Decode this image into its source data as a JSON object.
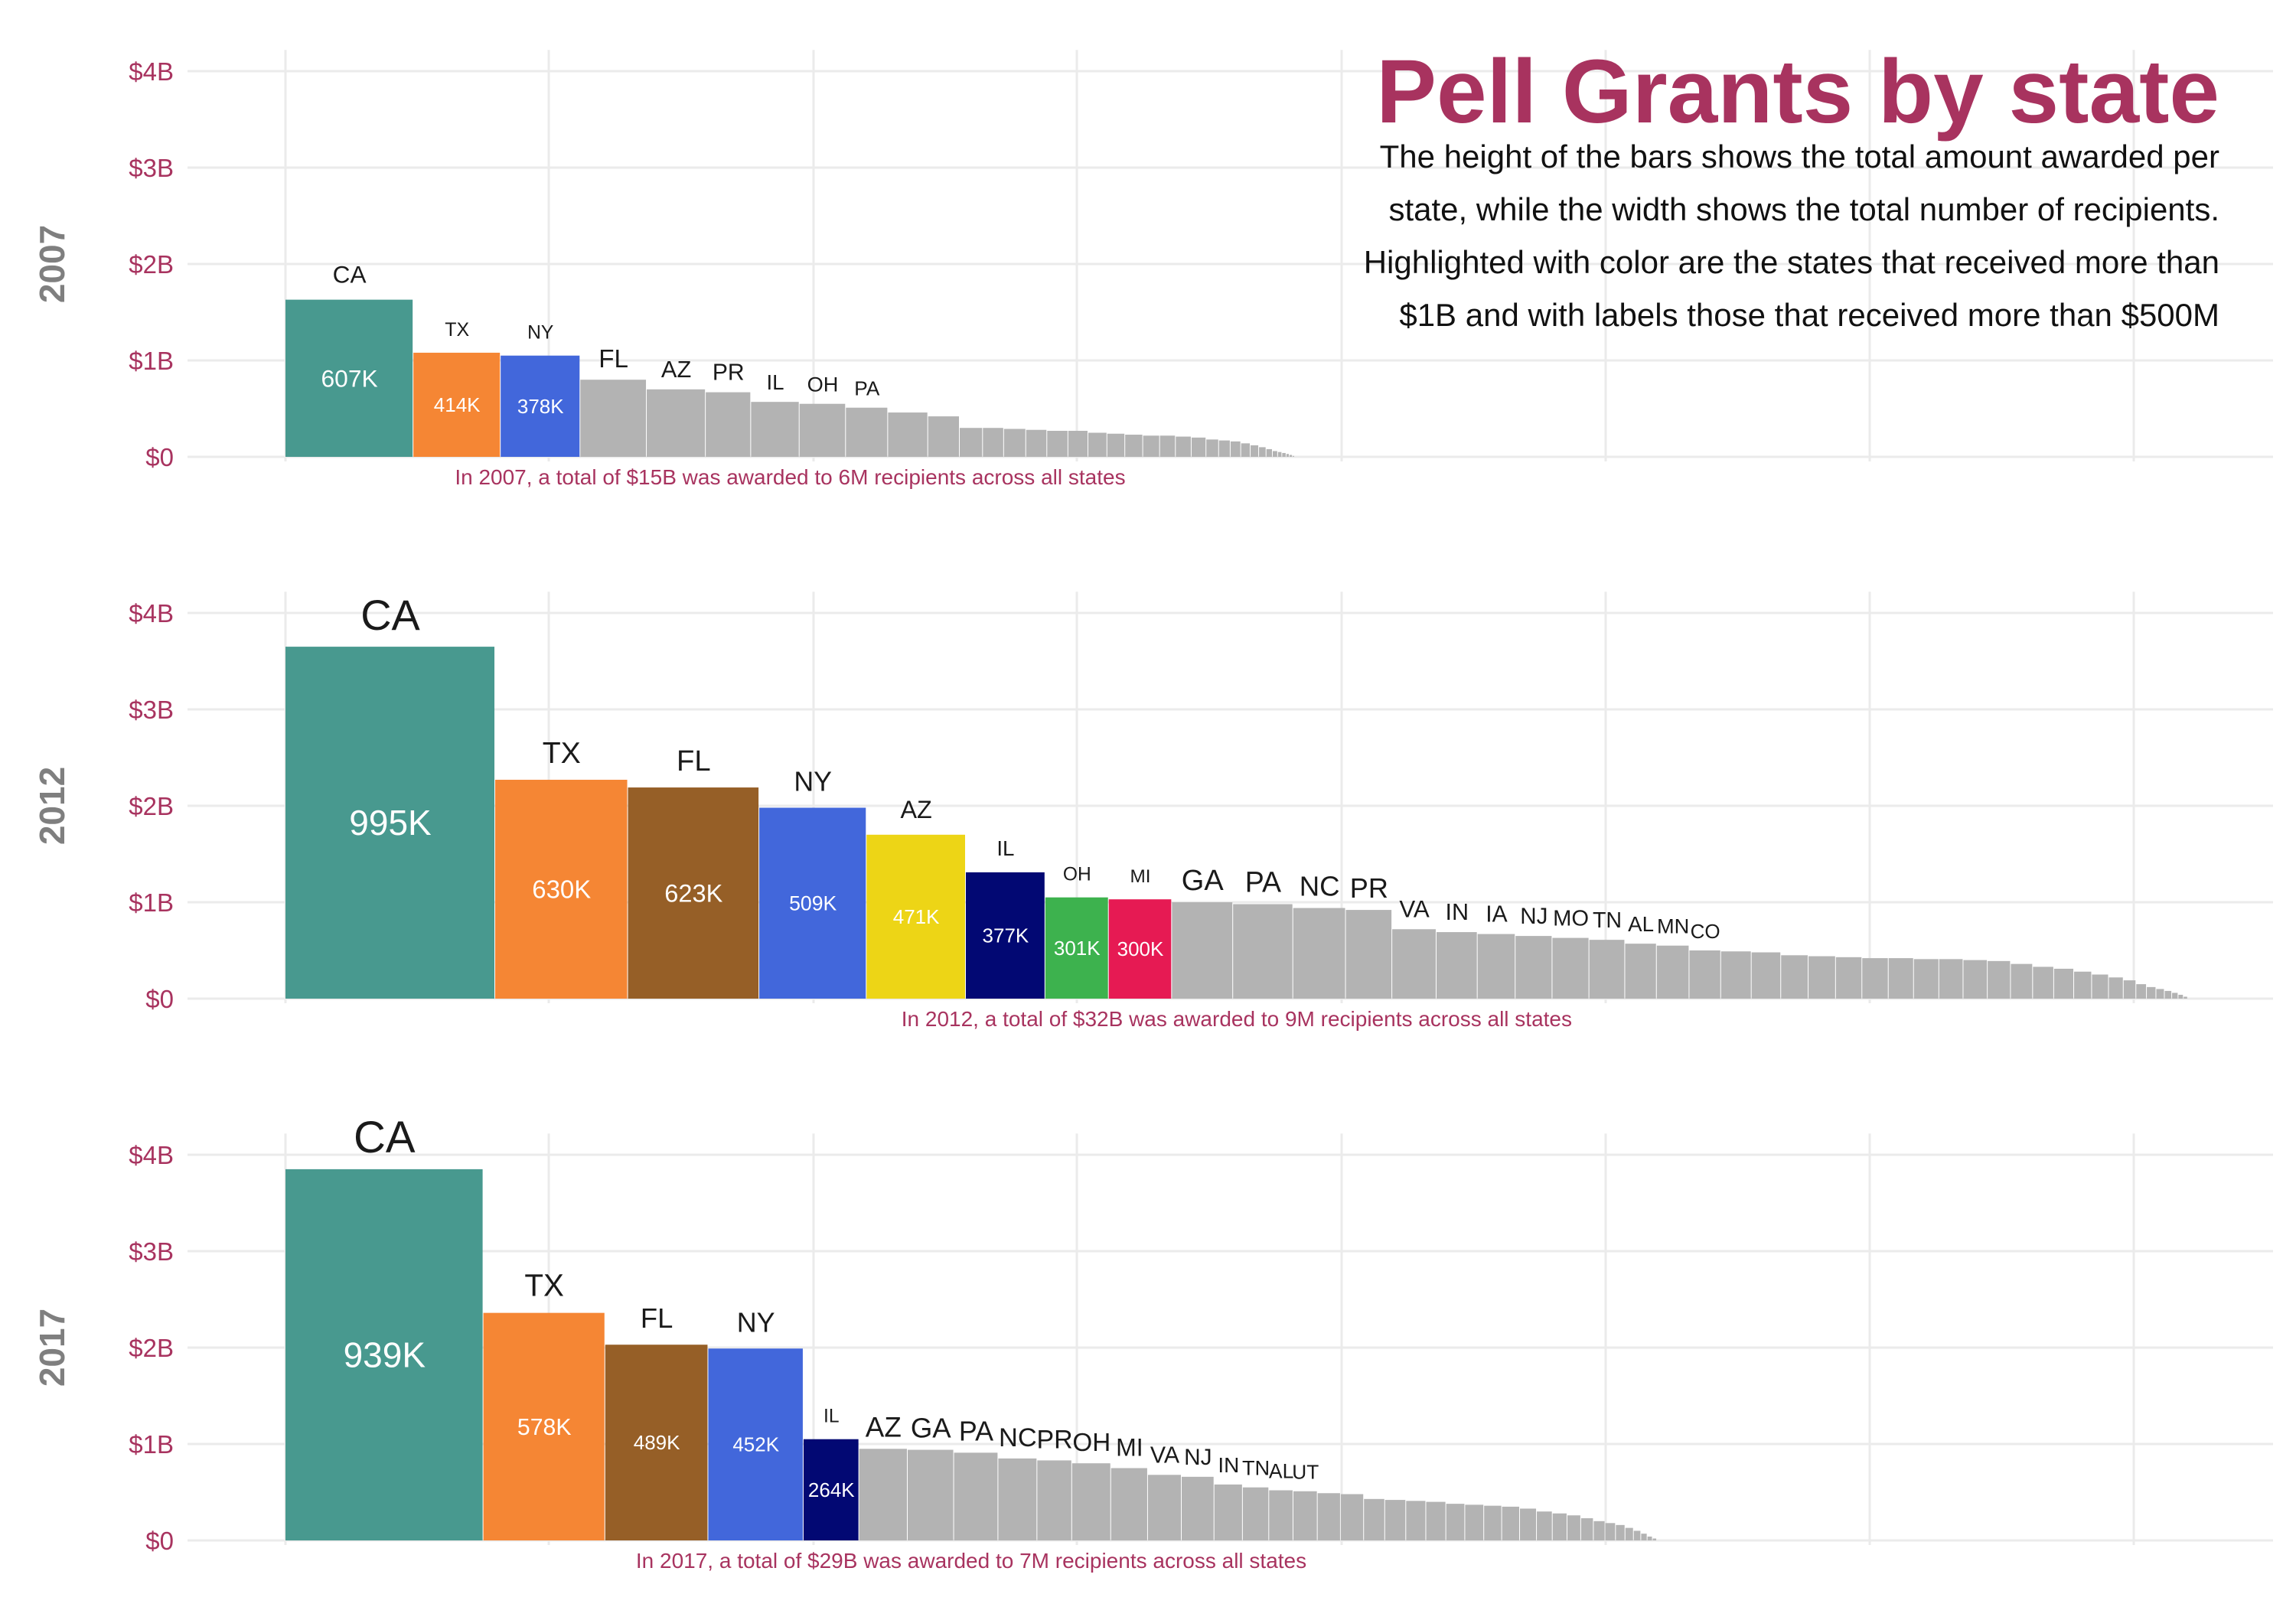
{
  "header": {
    "title": "Pell Grants by state",
    "subtitle": "The height of the bars shows the total amount awarded per state, while the width shows the total number of recipients. Highlighted with color are the states that received more than $1B and with labels those that received more than $500M"
  },
  "colors": {
    "title": "#A8335F",
    "tick_label": "#A8335F",
    "facet_label": "#7f7f7f",
    "grid": "#ebebeb",
    "other_bars": "#b3b3b3",
    "CA": "#48998F",
    "TX": "#F58634",
    "FL": "#965F27",
    "NY": "#4267DB",
    "AZ": "#EDD516",
    "IL": "#020873",
    "OH": "#3DB24E",
    "MI": "#E61A53"
  },
  "chart_data": [
    {
      "type": "bar",
      "subtype": "variable-width bar (Marimekko style): height = total awarded, width = number of recipients",
      "panel": "2007",
      "y_tick_labels": [
        "$0",
        "$1B",
        "$2B",
        "$3B",
        "$4B"
      ],
      "ylim": [
        0,
        4.0
      ],
      "y_unit": "billion USD",
      "x_unit": "thousand recipients",
      "grid": true,
      "caption": "In 2007, a total of $15B was awarded to 6M recipients across all states",
      "highlighted": [
        {
          "state": "CA",
          "value": 1.63,
          "recipients": 607,
          "recipients_label": "607K",
          "color": "#48998F"
        },
        {
          "state": "TX",
          "value": 1.08,
          "recipients": 414,
          "recipients_label": "414K",
          "color": "#F58634"
        },
        {
          "state": "NY",
          "value": 1.05,
          "recipients": 378,
          "recipients_label": "378K",
          "color": "#4267DB"
        }
      ],
      "others": [
        {
          "state": "FL",
          "value": 0.8,
          "recipients": 315
        },
        {
          "state": "AZ",
          "value": 0.7,
          "recipients": 280
        },
        {
          "state": "PR",
          "value": 0.67,
          "recipients": 215
        },
        {
          "state": "IL",
          "value": 0.57,
          "recipients": 230
        },
        {
          "state": "OH",
          "value": 0.55,
          "recipients": 220
        },
        {
          "state": "PA",
          "value": 0.51,
          "recipients": 200
        },
        {
          "state": "",
          "value": 0.46,
          "recipients": 190
        },
        {
          "state": "",
          "value": 0.42,
          "recipients": 150
        },
        {
          "state": "",
          "value": 0.3,
          "recipients": 110
        },
        {
          "state": "",
          "value": 0.3,
          "recipients": 100
        },
        {
          "state": "",
          "value": 0.29,
          "recipients": 105
        },
        {
          "state": "",
          "value": 0.28,
          "recipients": 100
        },
        {
          "state": "",
          "value": 0.27,
          "recipients": 100
        },
        {
          "state": "",
          "value": 0.27,
          "recipients": 95
        },
        {
          "state": "",
          "value": 0.25,
          "recipients": 90
        },
        {
          "state": "",
          "value": 0.24,
          "recipients": 85
        },
        {
          "state": "",
          "value": 0.23,
          "recipients": 85
        },
        {
          "state": "",
          "value": 0.22,
          "recipients": 80
        },
        {
          "state": "",
          "value": 0.22,
          "recipients": 75
        },
        {
          "state": "",
          "value": 0.21,
          "recipients": 75
        },
        {
          "state": "",
          "value": 0.2,
          "recipients": 70
        },
        {
          "state": "",
          "value": 0.18,
          "recipients": 60
        },
        {
          "state": "",
          "value": 0.17,
          "recipients": 55
        },
        {
          "state": "",
          "value": 0.16,
          "recipients": 50
        },
        {
          "state": "",
          "value": 0.14,
          "recipients": 45
        },
        {
          "state": "",
          "value": 0.12,
          "recipients": 40
        },
        {
          "state": "",
          "value": 0.1,
          "recipients": 35
        },
        {
          "state": "",
          "value": 0.08,
          "recipients": 30
        },
        {
          "state": "",
          "value": 0.06,
          "recipients": 25
        },
        {
          "state": "",
          "value": 0.05,
          "recipients": 20
        },
        {
          "state": "",
          "value": 0.04,
          "recipients": 20
        },
        {
          "state": "",
          "value": 0.03,
          "recipients": 15
        },
        {
          "state": "",
          "value": 0.02,
          "recipients": 15
        },
        {
          "state": "",
          "value": 0.01,
          "recipients": 10
        }
      ]
    },
    {
      "type": "bar",
      "subtype": "variable-width bar (Marimekko style): height = total awarded, width = number of recipients",
      "panel": "2012",
      "y_tick_labels": [
        "$0",
        "$1B",
        "$2B",
        "$3B",
        "$4B"
      ],
      "ylim": [
        0,
        4.0
      ],
      "y_unit": "billion USD",
      "x_unit": "thousand recipients",
      "grid": true,
      "caption": "In 2012, a total of $32B was awarded to 9M recipients across all states",
      "highlighted": [
        {
          "state": "CA",
          "value": 3.65,
          "recipients": 995,
          "recipients_label": "995K",
          "color": "#48998F"
        },
        {
          "state": "TX",
          "value": 2.27,
          "recipients": 630,
          "recipients_label": "630K",
          "color": "#F58634"
        },
        {
          "state": "FL",
          "value": 2.19,
          "recipients": 623,
          "recipients_label": "623K",
          "color": "#965F27"
        },
        {
          "state": "NY",
          "value": 1.98,
          "recipients": 509,
          "recipients_label": "509K",
          "color": "#4267DB"
        },
        {
          "state": "AZ",
          "value": 1.7,
          "recipients": 471,
          "recipients_label": "471K",
          "color": "#EDD516"
        },
        {
          "state": "IL",
          "value": 1.31,
          "recipients": 377,
          "recipients_label": "377K",
          "color": "#020873"
        },
        {
          "state": "OH",
          "value": 1.05,
          "recipients": 301,
          "recipients_label": "301K",
          "color": "#3DB24E"
        },
        {
          "state": "MI",
          "value": 1.03,
          "recipients": 300,
          "recipients_label": "300K",
          "color": "#E61A53"
        }
      ],
      "others": [
        {
          "state": "GA",
          "value": 1.0,
          "recipients": 290
        },
        {
          "state": "PA",
          "value": 0.98,
          "recipients": 285
        },
        {
          "state": "NC",
          "value": 0.94,
          "recipients": 250
        },
        {
          "state": "PR",
          "value": 0.92,
          "recipients": 220
        },
        {
          "state": "VA",
          "value": 0.72,
          "recipients": 210
        },
        {
          "state": "IN",
          "value": 0.69,
          "recipients": 195
        },
        {
          "state": "IA",
          "value": 0.67,
          "recipients": 180
        },
        {
          "state": "NJ",
          "value": 0.65,
          "recipients": 175
        },
        {
          "state": "MO",
          "value": 0.63,
          "recipients": 175
        },
        {
          "state": "TN",
          "value": 0.61,
          "recipients": 170
        },
        {
          "state": "AL",
          "value": 0.57,
          "recipients": 150
        },
        {
          "state": "MN",
          "value": 0.55,
          "recipients": 155
        },
        {
          "state": "CO",
          "value": 0.5,
          "recipients": 150
        },
        {
          "state": "",
          "value": 0.49,
          "recipients": 145
        },
        {
          "state": "",
          "value": 0.48,
          "recipients": 140
        },
        {
          "state": "",
          "value": 0.45,
          "recipients": 130
        },
        {
          "state": "",
          "value": 0.44,
          "recipients": 130
        },
        {
          "state": "",
          "value": 0.43,
          "recipients": 125
        },
        {
          "state": "",
          "value": 0.42,
          "recipients": 125
        },
        {
          "state": "",
          "value": 0.42,
          "recipients": 120
        },
        {
          "state": "",
          "value": 0.41,
          "recipients": 120
        },
        {
          "state": "",
          "value": 0.41,
          "recipients": 115
        },
        {
          "state": "",
          "value": 0.4,
          "recipients": 115
        },
        {
          "state": "",
          "value": 0.39,
          "recipients": 110
        },
        {
          "state": "",
          "value": 0.36,
          "recipients": 105
        },
        {
          "state": "",
          "value": 0.33,
          "recipients": 100
        },
        {
          "state": "",
          "value": 0.31,
          "recipients": 95
        },
        {
          "state": "",
          "value": 0.28,
          "recipients": 85
        },
        {
          "state": "",
          "value": 0.25,
          "recipients": 80
        },
        {
          "state": "",
          "value": 0.22,
          "recipients": 70
        },
        {
          "state": "",
          "value": 0.19,
          "recipients": 60
        },
        {
          "state": "",
          "value": 0.15,
          "recipients": 50
        },
        {
          "state": "",
          "value": 0.12,
          "recipients": 45
        },
        {
          "state": "",
          "value": 0.1,
          "recipients": 40
        },
        {
          "state": "",
          "value": 0.08,
          "recipients": 35
        },
        {
          "state": "",
          "value": 0.06,
          "recipients": 30
        },
        {
          "state": "",
          "value": 0.04,
          "recipients": 25
        },
        {
          "state": "",
          "value": 0.02,
          "recipients": 20
        }
      ]
    },
    {
      "type": "bar",
      "subtype": "variable-width bar (Marimekko style): height = total awarded, width = number of recipients",
      "panel": "2017",
      "y_tick_labels": [
        "$0",
        "$1B",
        "$2B",
        "$3B",
        "$4B"
      ],
      "ylim": [
        0,
        4.0
      ],
      "y_unit": "billion USD",
      "x_unit": "thousand recipients",
      "grid": true,
      "caption": "In 2017, a total of $29B was awarded to 7M recipients across all states",
      "highlighted": [
        {
          "state": "CA",
          "value": 3.85,
          "recipients": 939,
          "recipients_label": "939K",
          "color": "#48998F"
        },
        {
          "state": "TX",
          "value": 2.36,
          "recipients": 578,
          "recipients_label": "578K",
          "color": "#F58634"
        },
        {
          "state": "FL",
          "value": 2.03,
          "recipients": 489,
          "recipients_label": "489K",
          "color": "#965F27"
        },
        {
          "state": "NY",
          "value": 1.99,
          "recipients": 452,
          "recipients_label": "452K",
          "color": "#4267DB"
        },
        {
          "state": "IL",
          "value": 1.05,
          "recipients": 264,
          "recipients_label": "264K",
          "color": "#020873"
        }
      ],
      "others": [
        {
          "state": "AZ",
          "value": 0.95,
          "recipients": 230
        },
        {
          "state": "GA",
          "value": 0.94,
          "recipients": 220
        },
        {
          "state": "PA",
          "value": 0.91,
          "recipients": 210
        },
        {
          "state": "NC",
          "value": 0.85,
          "recipients": 185
        },
        {
          "state": "PR",
          "value": 0.83,
          "recipients": 165
        },
        {
          "state": "OH",
          "value": 0.8,
          "recipients": 185
        },
        {
          "state": "MI",
          "value": 0.75,
          "recipients": 175
        },
        {
          "state": "VA",
          "value": 0.68,
          "recipients": 160
        },
        {
          "state": "NJ",
          "value": 0.66,
          "recipients": 155
        },
        {
          "state": "IN",
          "value": 0.58,
          "recipients": 135
        },
        {
          "state": "TN",
          "value": 0.55,
          "recipients": 125
        },
        {
          "state": "AL",
          "value": 0.52,
          "recipients": 115
        },
        {
          "state": "UT",
          "value": 0.51,
          "recipients": 115
        },
        {
          "state": "",
          "value": 0.49,
          "recipients": 110
        },
        {
          "state": "",
          "value": 0.48,
          "recipients": 110
        },
        {
          "state": "",
          "value": 0.43,
          "recipients": 100
        },
        {
          "state": "",
          "value": 0.42,
          "recipients": 100
        },
        {
          "state": "",
          "value": 0.41,
          "recipients": 95
        },
        {
          "state": "",
          "value": 0.4,
          "recipients": 95
        },
        {
          "state": "",
          "value": 0.38,
          "recipients": 90
        },
        {
          "state": "",
          "value": 0.37,
          "recipients": 90
        },
        {
          "state": "",
          "value": 0.36,
          "recipients": 85
        },
        {
          "state": "",
          "value": 0.35,
          "recipients": 85
        },
        {
          "state": "",
          "value": 0.33,
          "recipients": 80
        },
        {
          "state": "",
          "value": 0.3,
          "recipients": 75
        },
        {
          "state": "",
          "value": 0.28,
          "recipients": 70
        },
        {
          "state": "",
          "value": 0.26,
          "recipients": 65
        },
        {
          "state": "",
          "value": 0.23,
          "recipients": 60
        },
        {
          "state": "",
          "value": 0.2,
          "recipients": 55
        },
        {
          "state": "",
          "value": 0.18,
          "recipients": 50
        },
        {
          "state": "",
          "value": 0.16,
          "recipients": 45
        },
        {
          "state": "",
          "value": 0.13,
          "recipients": 40
        },
        {
          "state": "",
          "value": 0.1,
          "recipients": 35
        },
        {
          "state": "",
          "value": 0.07,
          "recipients": 30
        },
        {
          "state": "",
          "value": 0.04,
          "recipients": 25
        },
        {
          "state": "",
          "value": 0.02,
          "recipients": 20
        }
      ]
    }
  ]
}
